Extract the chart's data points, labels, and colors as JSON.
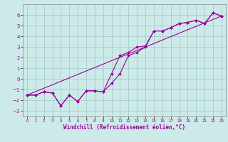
{
  "xlabel": "Windchill (Refroidissement éolien,°C)",
  "background_color": "#cceae8",
  "grid_color": "#aacccc",
  "line_color": "#990099",
  "xlim": [
    -0.5,
    23.5
  ],
  "ylim": [
    -3.5,
    7.0
  ],
  "yticks": [
    -3,
    -2,
    -1,
    0,
    1,
    2,
    3,
    4,
    5,
    6
  ],
  "xticks": [
    0,
    1,
    2,
    3,
    4,
    5,
    6,
    7,
    8,
    9,
    10,
    11,
    12,
    13,
    14,
    15,
    16,
    17,
    18,
    19,
    20,
    21,
    22,
    23
  ],
  "series1_x": [
    0,
    1,
    2,
    3,
    4,
    5,
    6,
    7,
    8,
    9,
    10,
    11,
    12,
    13,
    14,
    15,
    16,
    17,
    18,
    19,
    20,
    21,
    22,
    23
  ],
  "series1_y": [
    -1.5,
    -1.5,
    -1.2,
    -1.3,
    -2.5,
    -1.5,
    -2.1,
    -1.1,
    -1.1,
    -1.2,
    -0.4,
    0.5,
    2.2,
    2.5,
    3.0,
    4.5,
    4.5,
    4.8,
    5.2,
    5.3,
    5.5,
    5.2,
    6.2,
    5.9
  ],
  "series2_x": [
    0,
    1,
    2,
    3,
    4,
    5,
    6,
    7,
    8,
    9,
    10,
    11,
    12,
    13,
    14,
    15,
    16,
    17,
    18,
    19,
    20,
    21,
    22,
    23
  ],
  "series2_y": [
    -1.5,
    -1.5,
    -1.2,
    -1.3,
    -2.5,
    -1.5,
    -2.1,
    -1.1,
    -1.1,
    -1.2,
    0.5,
    2.2,
    2.5,
    3.0,
    3.1,
    4.5,
    4.5,
    4.8,
    5.2,
    5.3,
    5.5,
    5.2,
    6.2,
    5.9
  ],
  "series3_x": [
    0,
    23
  ],
  "series3_y": [
    -1.5,
    5.9
  ]
}
